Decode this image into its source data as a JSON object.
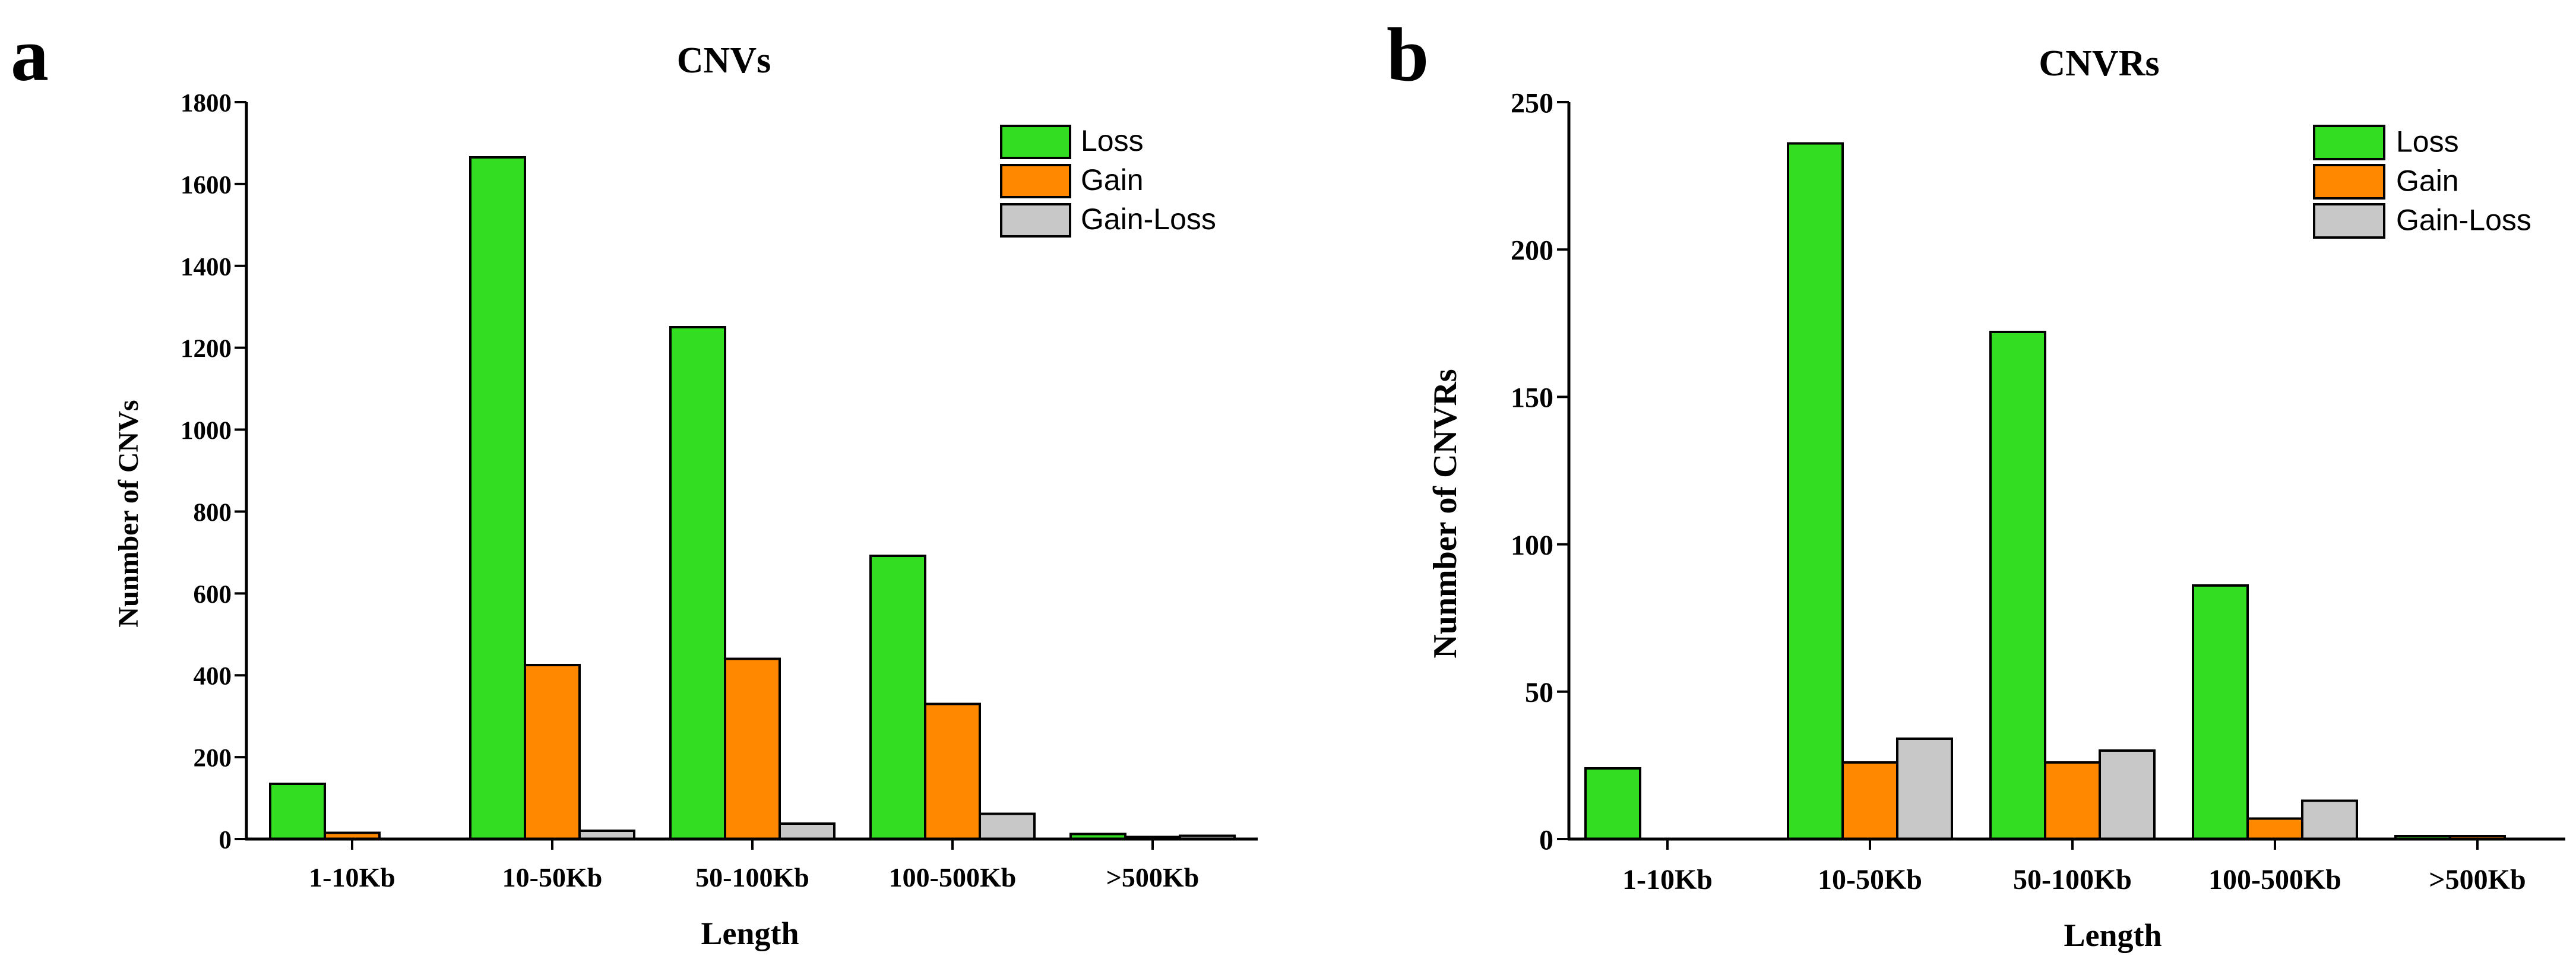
{
  "colors": {
    "loss": "#33DD22",
    "gain": "#FF8800",
    "gain_loss": "#C8C8C8",
    "axis": "#000000"
  },
  "chart_data": [
    {
      "panel_letter": "a",
      "type": "bar",
      "title": "CNVs",
      "xlabel": "Length",
      "ylabel": "Nunmber of CNVs",
      "categories": [
        "1-10Kb",
        "10-50Kb",
        "50-100Kb",
        "100-500Kb",
        ">500Kb"
      ],
      "series": [
        {
          "name": "Loss",
          "color_key": "loss",
          "values": [
            135,
            1665,
            1250,
            692,
            12
          ]
        },
        {
          "name": "Gain",
          "color_key": "gain",
          "values": [
            15,
            425,
            440,
            330,
            5
          ]
        },
        {
          "name": "Gain-Loss",
          "color_key": "gain_loss",
          "values": [
            0,
            20,
            38,
            62,
            8
          ]
        }
      ],
      "ylim": [
        0,
        1800
      ],
      "yticks": [
        0,
        200,
        400,
        600,
        800,
        1000,
        1200,
        1400,
        1600,
        1800
      ],
      "legend_position": "top-right",
      "grid": false
    },
    {
      "panel_letter": "b",
      "type": "bar",
      "title": "CNVRs",
      "xlabel": "Length",
      "ylabel": "Nunmber of CNVRs",
      "categories": [
        "1-10Kb",
        "10-50Kb",
        "50-100Kb",
        "100-500Kb",
        ">500Kb"
      ],
      "series": [
        {
          "name": "Loss",
          "color_key": "loss",
          "values": [
            24,
            236,
            172,
            86,
            1
          ]
        },
        {
          "name": "Gain",
          "color_key": "gain",
          "values": [
            0,
            26,
            26,
            7,
            1
          ]
        },
        {
          "name": "Gain-Loss",
          "color_key": "gain_loss",
          "values": [
            0,
            34,
            30,
            13,
            0
          ]
        }
      ],
      "ylim": [
        0,
        250
      ],
      "yticks": [
        0,
        50,
        100,
        150,
        200,
        250
      ],
      "legend_position": "top-right",
      "grid": false
    }
  ]
}
